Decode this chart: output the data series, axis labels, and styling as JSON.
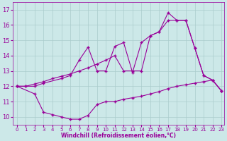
{
  "xlabel": "Windchill (Refroidissement éolien,°C)",
  "bg_color": "#cce8e8",
  "grid_color": "#aacccc",
  "line_color": "#990099",
  "xlim": [
    -0.5,
    23.3
  ],
  "ylim": [
    9.5,
    17.5
  ],
  "yticks": [
    10,
    11,
    12,
    13,
    14,
    15,
    16,
    17
  ],
  "xticks": [
    0,
    1,
    2,
    3,
    4,
    5,
    6,
    7,
    8,
    9,
    10,
    11,
    12,
    13,
    14,
    15,
    16,
    17,
    18,
    19,
    20,
    21,
    22,
    23
  ],
  "series1_x": [
    0,
    2,
    3,
    4,
    5,
    6,
    7,
    8,
    9,
    10,
    11,
    12,
    13,
    14,
    15,
    16,
    17,
    18,
    19,
    20,
    21,
    22,
    23
  ],
  "series1_y": [
    12.0,
    11.5,
    10.3,
    10.15,
    10.0,
    9.85,
    9.85,
    10.1,
    10.8,
    11.0,
    11.0,
    11.15,
    11.25,
    11.35,
    11.5,
    11.65,
    11.85,
    12.0,
    12.1,
    12.2,
    12.3,
    12.4,
    11.7
  ],
  "series2_x": [
    0,
    1,
    2,
    3,
    4,
    5,
    6,
    7,
    8,
    9,
    10,
    11,
    12,
    13,
    14,
    15,
    16,
    17,
    18,
    19,
    20,
    21,
    22,
    23
  ],
  "series2_y": [
    12.0,
    12.0,
    12.15,
    12.3,
    12.5,
    12.65,
    12.8,
    13.0,
    13.2,
    13.45,
    13.7,
    14.0,
    13.0,
    13.0,
    13.0,
    15.3,
    15.55,
    16.3,
    16.3,
    16.3,
    14.5,
    12.7,
    12.4,
    11.7
  ],
  "series3_x": [
    0,
    1,
    2,
    3,
    5,
    6,
    7,
    8,
    9,
    10,
    11,
    12,
    13,
    14,
    15,
    16,
    17,
    18,
    19,
    20,
    21,
    22,
    23
  ],
  "series3_y": [
    12.0,
    12.0,
    12.0,
    12.2,
    12.5,
    12.7,
    13.7,
    14.55,
    13.0,
    13.0,
    14.6,
    14.85,
    12.9,
    14.85,
    15.3,
    15.55,
    16.8,
    16.3,
    16.3,
    14.5,
    12.7,
    12.4,
    11.7
  ]
}
